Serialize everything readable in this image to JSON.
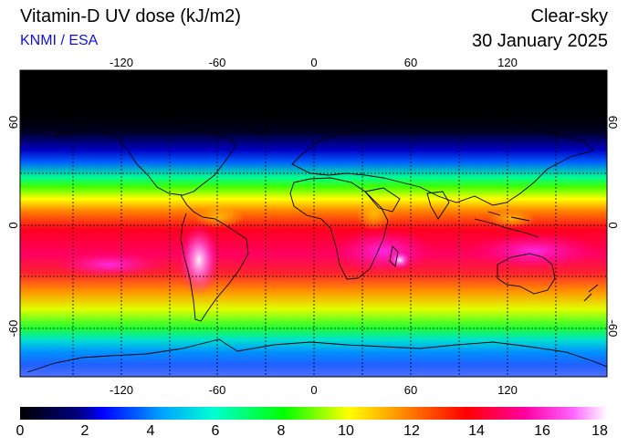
{
  "header": {
    "title": "Vitamin-D UV dose (kJ/m2)",
    "subtitle": "KNMI / ESA",
    "sky_condition": "Clear-sky",
    "date": "30 January 2025"
  },
  "map": {
    "lon_ticks": [
      "-120",
      "-60",
      "0",
      "60",
      "120"
    ],
    "lat_ticks": [
      "60",
      "0",
      "-60"
    ],
    "lon_range": [
      -180,
      180
    ],
    "lat_range": [
      -90,
      90
    ],
    "grid_lons": [
      -120,
      -90,
      -60,
      -30,
      0,
      30,
      60,
      90,
      120,
      150
    ],
    "grid_lats": [
      -60,
      -30,
      0,
      30,
      60
    ]
  },
  "colorbar": {
    "labels": [
      "0",
      "2",
      "4",
      "6",
      "8",
      "10",
      "12",
      "14",
      "16",
      "18"
    ],
    "min": 0,
    "max": 18,
    "colors": [
      "#000000",
      "#0000ff",
      "#00b0ff",
      "#00ffc0",
      "#00ff00",
      "#ffff00",
      "#ff7f00",
      "#ff0000",
      "#ff00a0",
      "#ff60ff",
      "#ffffff"
    ]
  }
}
